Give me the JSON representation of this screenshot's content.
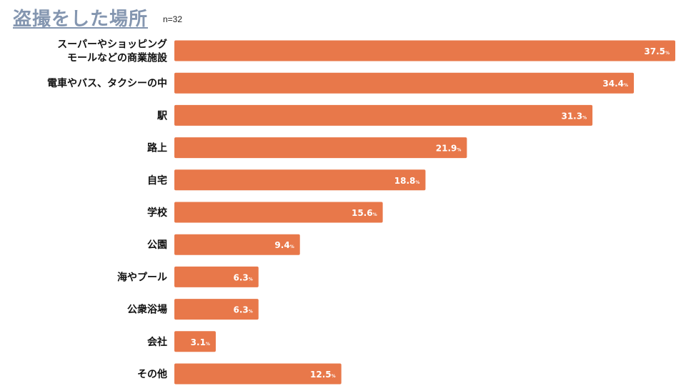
{
  "header": {
    "title": "盗撮をした場所",
    "sample_size": "n=32"
  },
  "chart_data": {
    "type": "bar",
    "orientation": "horizontal",
    "title": "盗撮をした場所",
    "categories": [
      [
        "スーパーやショッピング",
        "モールなどの商業施設"
      ],
      [
        "電車やバス、タクシーの中"
      ],
      [
        "駅"
      ],
      [
        "路上"
      ],
      [
        "自宅"
      ],
      [
        "学校"
      ],
      [
        "公園"
      ],
      [
        "海やプール"
      ],
      [
        "公衆浴場"
      ],
      [
        "会社"
      ],
      [
        "その他"
      ]
    ],
    "values": [
      37.5,
      34.4,
      31.3,
      21.9,
      18.8,
      15.6,
      9.4,
      6.3,
      6.3,
      3.1,
      12.5
    ],
    "value_labels": [
      "37.5",
      "34.4",
      "31.3",
      "21.9",
      "18.8",
      "15.6",
      "9.4",
      "6.3",
      "6.3",
      "3.1",
      "12.5"
    ],
    "unit": "%",
    "xlim": [
      0,
      37.5
    ],
    "grid": false,
    "bar_color": "#e8784a"
  }
}
